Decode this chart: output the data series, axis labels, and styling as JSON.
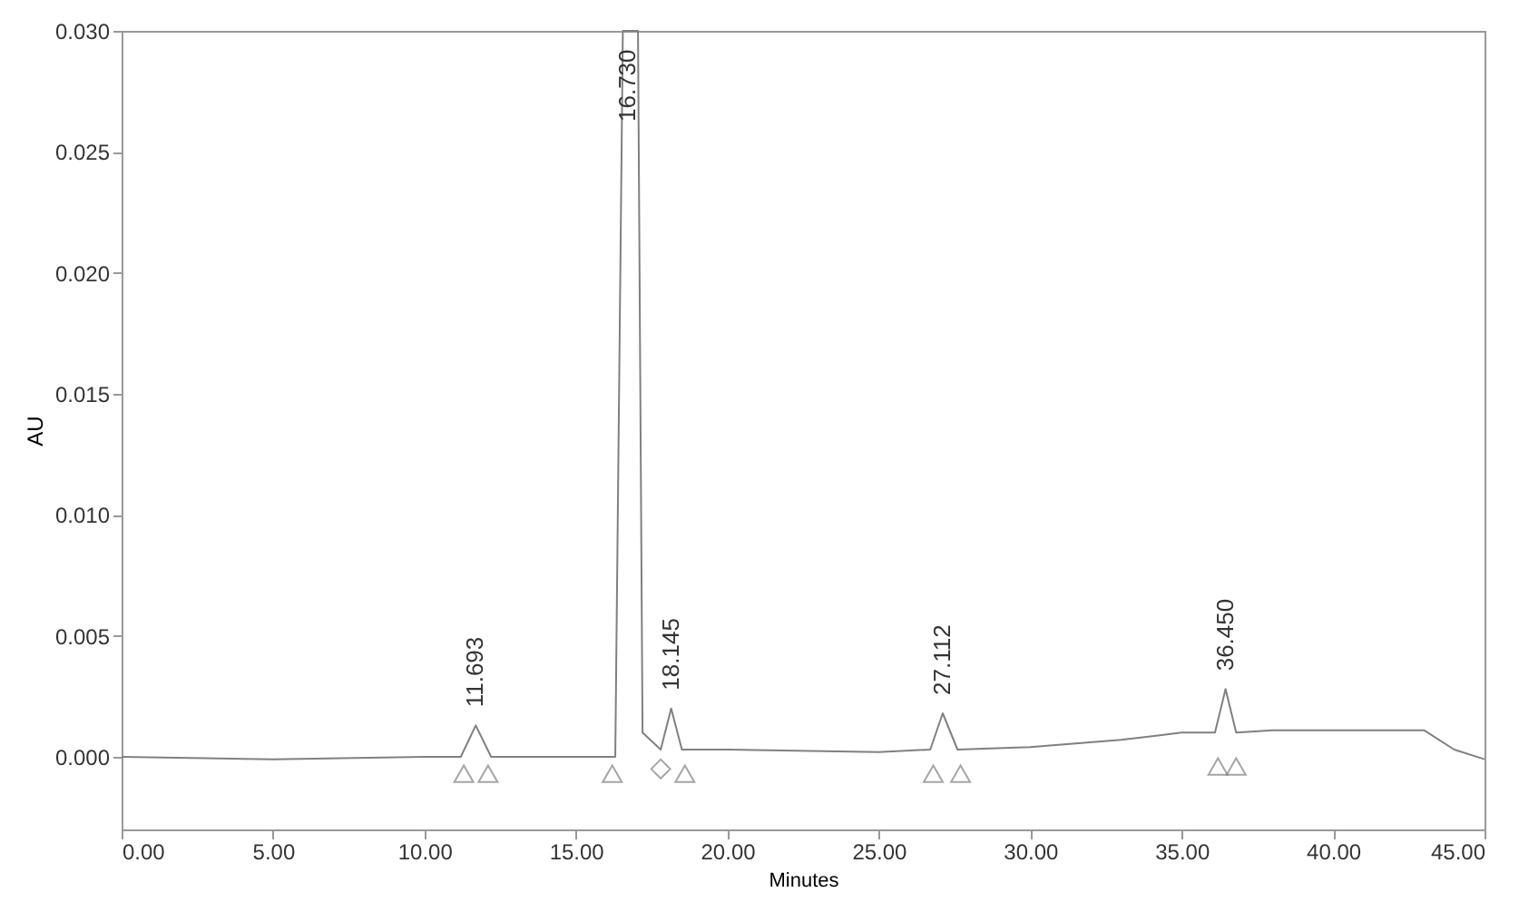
{
  "chart_data": {
    "type": "line",
    "xlabel": "Minutes",
    "ylabel": "AU",
    "xlim": [
      0,
      45
    ],
    "ylim": [
      -0.003,
      0.03
    ],
    "xticks": [
      {
        "value": 0,
        "label": "0.00"
      },
      {
        "value": 5,
        "label": "5.00"
      },
      {
        "value": 10,
        "label": "10.00"
      },
      {
        "value": 15,
        "label": "15.00"
      },
      {
        "value": 20,
        "label": "20.00"
      },
      {
        "value": 25,
        "label": "25.00"
      },
      {
        "value": 30,
        "label": "30.00"
      },
      {
        "value": 35,
        "label": "35.00"
      },
      {
        "value": 40,
        "label": "40.00"
      },
      {
        "value": 45,
        "label": "45.00"
      }
    ],
    "yticks": [
      {
        "value": 0,
        "label": "0.000"
      },
      {
        "value": 0.005,
        "label": "0.005"
      },
      {
        "value": 0.01,
        "label": "0.010"
      },
      {
        "value": 0.015,
        "label": "0.015"
      },
      {
        "value": 0.02,
        "label": "0.020"
      },
      {
        "value": 0.025,
        "label": "0.025"
      },
      {
        "value": 0.03,
        "label": "0.030"
      }
    ],
    "grid": false,
    "series": [
      {
        "color": "#808080",
        "x": [
          0,
          5,
          10,
          11.2,
          11.693,
          12.2,
          13,
          16.3,
          16.55,
          17.05,
          17.2,
          17.8,
          18.145,
          18.5,
          20,
          25,
          26.7,
          27.112,
          27.6,
          30,
          33,
          35,
          36.1,
          36.45,
          36.8,
          38,
          40,
          43,
          44,
          45
        ],
        "values": [
          0,
          -0.0001,
          0,
          0,
          0.0013,
          0,
          0,
          0,
          0.03,
          0.03,
          0.001,
          0.0003,
          0.002,
          0.0003,
          0.0003,
          0.0002,
          0.0003,
          0.0018,
          0.0003,
          0.0004,
          0.0007,
          0.001,
          0.001,
          0.0028,
          0.001,
          0.0011,
          0.0011,
          0.0011,
          0.0003,
          -0.0001
        ]
      },
      {
        "type": "scatter",
        "marker": "triangle",
        "color": "#808080",
        "x": [
          11.3,
          12.1,
          16.2,
          18.6,
          26.8,
          27.7,
          36.2,
          36.8
        ],
        "values": [
          -0.0007,
          -0.0007,
          -0.0007,
          -0.0007,
          -0.0007,
          -0.0007,
          -0.0004,
          -0.0004
        ]
      },
      {
        "type": "scatter",
        "marker": "diamond",
        "color": "#808080",
        "x": [
          17.8
        ],
        "values": [
          -0.0005
        ]
      }
    ],
    "annotations": [
      {
        "text": "11.693",
        "x": 11.693,
        "y": 0.0013
      },
      {
        "text": "16.730",
        "x": 16.73,
        "y": 0.0255
      },
      {
        "text": "18.145",
        "x": 18.145,
        "y": 0.002
      },
      {
        "text": "27.112",
        "x": 27.112,
        "y": 0.0018
      },
      {
        "text": "36.450",
        "x": 36.45,
        "y": 0.0028
      }
    ]
  }
}
